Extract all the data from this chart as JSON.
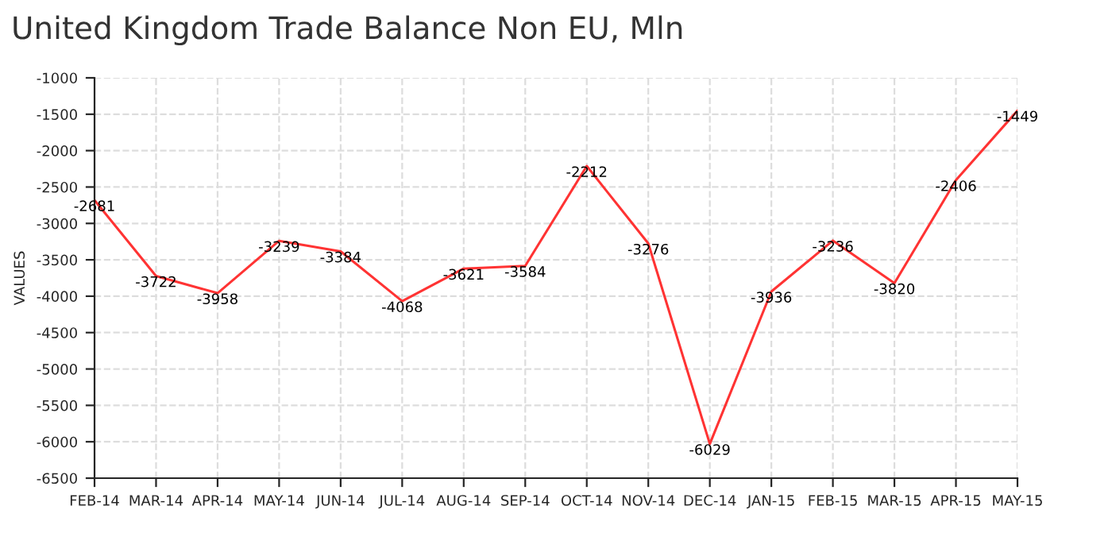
{
  "chart_data": {
    "type": "line",
    "title": "United Kingdom Trade Balance Non EU, Mln",
    "ylabel": "VALUES",
    "categories": [
      "FEB-14",
      "MAR-14",
      "APR-14",
      "MAY-14",
      "JUN-14",
      "JUL-14",
      "AUG-14",
      "SEP-14",
      "OCT-14",
      "NOV-14",
      "DEC-14",
      "JAN-15",
      "FEB-15",
      "MAR-15",
      "APR-15",
      "MAY-15"
    ],
    "series": [
      {
        "color": "#ff3333",
        "values": [
          -2681,
          -3722,
          -3958,
          -3239,
          -3384,
          -4068,
          -3621,
          -3584,
          -2212,
          -3276,
          -6029,
          -3936,
          -3236,
          -3820,
          -2406,
          -1449
        ]
      }
    ],
    "ylim": [
      -6500,
      -1000
    ],
    "yticks": [
      -6500,
      -6000,
      -5500,
      -5000,
      -4500,
      -4000,
      -3500,
      -3000,
      -2500,
      -2000,
      -1500,
      -1000
    ],
    "grid": true,
    "data_labels": true,
    "marker": "none",
    "line_style": "solid",
    "legend": false
  }
}
